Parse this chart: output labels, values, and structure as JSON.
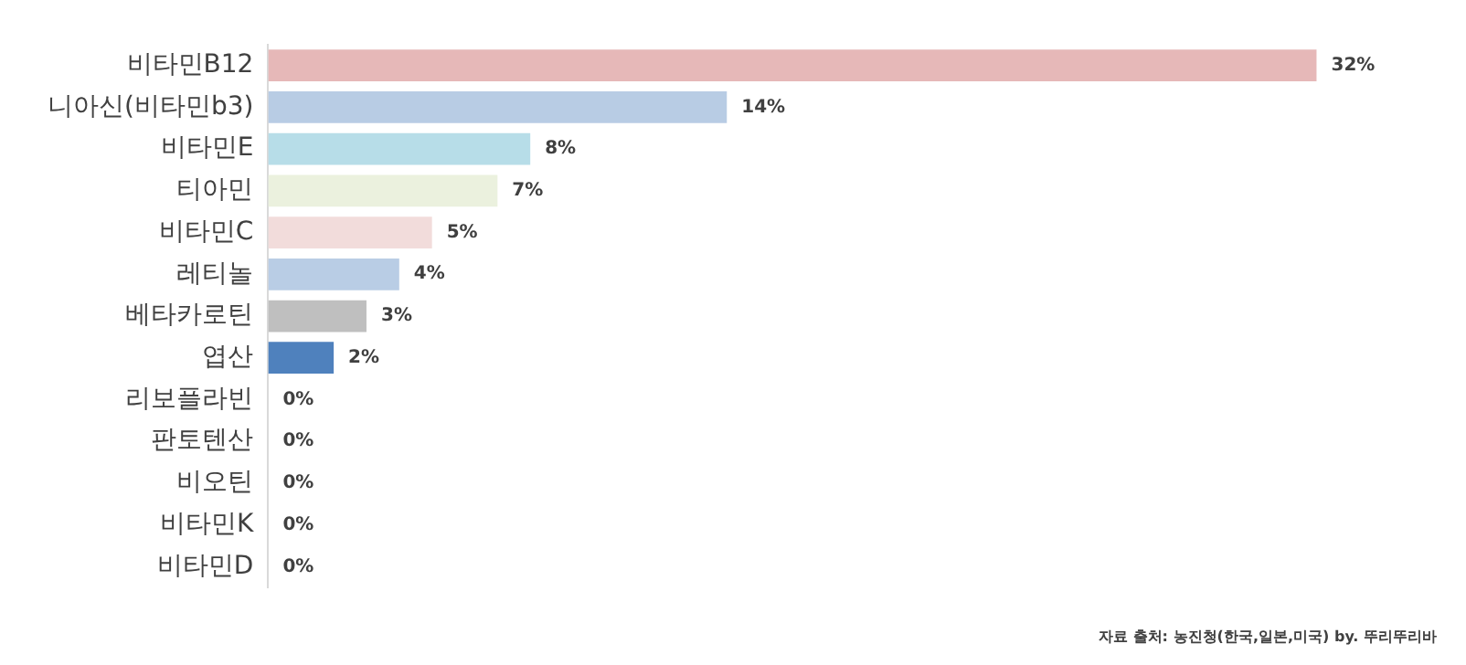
{
  "chart_data": {
    "type": "bar",
    "orientation": "horizontal",
    "categories": [
      "비타민B12",
      "니아신(비타민b3)",
      "비타민E",
      "티아민",
      "비타민C",
      "레티놀",
      "베타카로틴",
      "엽산",
      "리보플라빈",
      "판토텐산",
      "비오틴",
      "비타민K",
      "비타민D"
    ],
    "values": [
      32,
      14,
      8,
      7,
      5,
      4,
      3,
      2,
      0,
      0,
      0,
      0,
      0
    ],
    "colors": [
      "#e6b8b8",
      "#b8cce4",
      "#b7dde8",
      "#ebf1de",
      "#f2dcdb",
      "#b9cde5",
      "#bfbfbf",
      "#4f81bd",
      "#4f81bd",
      "#4f81bd",
      "#4f81bd",
      "#4f81bd",
      "#4f81bd"
    ],
    "value_labels": [
      "32%",
      "14%",
      "8%",
      "7%",
      "5%",
      "4%",
      "3%",
      "2%",
      "0%",
      "0%",
      "0%",
      "0%",
      "0%"
    ],
    "annotations": [
      "자료 출처: 농진청(한국,일본,미국) by. 뚜리뚜리바"
    ],
    "legend": false
  }
}
